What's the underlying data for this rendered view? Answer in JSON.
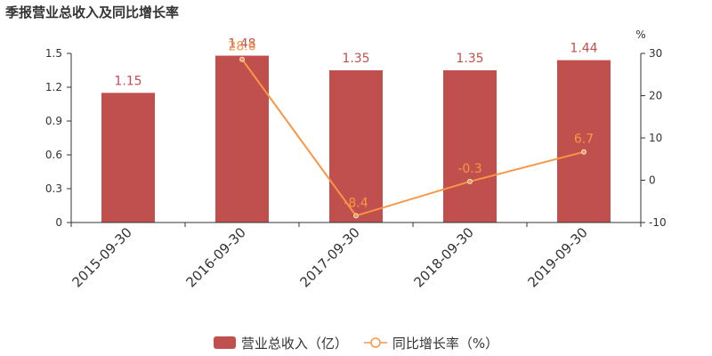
{
  "page": {
    "title": "季报营业总收入及同比增长率"
  },
  "colors": {
    "bar": "#c0504d",
    "line": "#f79646",
    "axis": "#333333",
    "text": "#333333"
  },
  "chart_data": {
    "type": "bar",
    "categories": [
      "2015-09-30",
      "2016-09-30",
      "2017-09-30",
      "2018-09-30",
      "2019-09-30"
    ],
    "series": [
      {
        "name": "营业总收入（亿）",
        "type": "bar",
        "axis": "left",
        "values": [
          1.15,
          1.48,
          1.35,
          1.35,
          1.44
        ],
        "labels": [
          "1.15",
          "1.48",
          "1.35",
          "1.35",
          "1.44"
        ]
      },
      {
        "name": "同比增长率（%）",
        "type": "line",
        "axis": "right",
        "values": [
          null,
          28.6,
          -8.4,
          -0.3,
          6.7
        ],
        "labels": [
          "",
          "28.6",
          "-8.4",
          "-0.3",
          "6.7"
        ]
      }
    ],
    "y_left": {
      "min": 0,
      "max": 1.5,
      "ticks": [
        "0",
        "0.3",
        "0.6",
        "0.9",
        "1.2",
        "1.5"
      ]
    },
    "y_right": {
      "min": -10,
      "max": 30,
      "unit": "%",
      "ticks": [
        "-10",
        "0",
        "10",
        "20",
        "30"
      ]
    },
    "grid": false,
    "legend_position": "bottom"
  }
}
